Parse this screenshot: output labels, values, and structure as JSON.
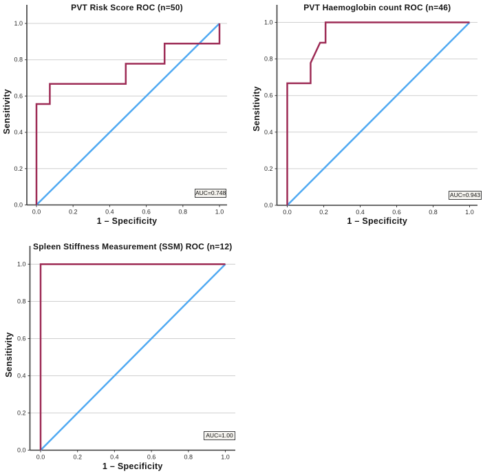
{
  "page": {
    "background": "#ffffff"
  },
  "colors": {
    "roc_curve": "#9d2b55",
    "reference_line": "#4fa9f2",
    "gridline": "#cfcfcf",
    "axis": "#3b3b3b",
    "text": "#151515",
    "auc_box_bg": "#f4f2ed"
  },
  "chart_data": [
    {
      "type": "line",
      "title": "PVT Risk Score ROC (n=50)",
      "xlabel": "1 – Specificity",
      "ylabel": "Sensitivity",
      "annotation": "AUC=0.748",
      "auc": 0.748,
      "xlim": [
        0,
        1
      ],
      "ylim": [
        0,
        1
      ],
      "x_ticks": [
        0.0,
        0.2,
        0.4,
        0.6,
        0.8,
        1.0
      ],
      "y_ticks": [
        0.0,
        0.2,
        0.4,
        0.6,
        0.8,
        1.0
      ],
      "grid": "horizontal-only",
      "legend": "none",
      "series": [
        {
          "id": "roc-curve",
          "color": "#9d2b55",
          "points": [
            [
              0,
              0
            ],
            [
              0,
              0.556
            ],
            [
              0.073,
              0.556
            ],
            [
              0.073,
              0.667
            ],
            [
              0.488,
              0.667
            ],
            [
              0.488,
              0.778
            ],
            [
              0.7,
              0.778
            ],
            [
              0.7,
              0.889
            ],
            [
              1,
              0.889
            ],
            [
              1,
              1
            ]
          ]
        },
        {
          "id": "reference-line",
          "color": "#4fa9f2",
          "points": [
            [
              0,
              0
            ],
            [
              1,
              1
            ]
          ]
        }
      ]
    },
    {
      "type": "line",
      "title": "PVT Haemoglobin count ROC (n=46)",
      "xlabel": "1 – Specificity",
      "ylabel": "Sensitivity",
      "annotation": "AUC=0.943",
      "auc": 0.943,
      "xlim": [
        0,
        1
      ],
      "ylim": [
        0,
        1
      ],
      "x_ticks": [
        0.0,
        0.2,
        0.4,
        0.6,
        0.8,
        1.0
      ],
      "y_ticks": [
        0.0,
        0.2,
        0.4,
        0.6,
        0.8,
        1.0
      ],
      "grid": "horizontal-only",
      "legend": "none",
      "series": [
        {
          "id": "roc-curve",
          "color": "#9d2b55",
          "points": [
            [
              0,
              0
            ],
            [
              0,
              0.667
            ],
            [
              0.128,
              0.667
            ],
            [
              0.128,
              0.778
            ],
            [
              0.18,
              0.889
            ],
            [
              0.21,
              0.889
            ],
            [
              0.21,
              1
            ],
            [
              1,
              1
            ]
          ]
        },
        {
          "id": "reference-line",
          "color": "#4fa9f2",
          "points": [
            [
              0,
              0
            ],
            [
              1,
              1
            ]
          ]
        }
      ]
    },
    {
      "type": "line",
      "title": "Spleen Stiffness Measurement (SSM) ROC (n=12)",
      "xlabel": "1 – Specificity",
      "ylabel": "Sensitivity",
      "annotation": "AUC=1.00",
      "auc": 1.0,
      "xlim": [
        0,
        1
      ],
      "ylim": [
        0,
        1
      ],
      "x_ticks": [
        0.0,
        0.2,
        0.4,
        0.6,
        0.8,
        1.0
      ],
      "y_ticks": [
        0.0,
        0.2,
        0.4,
        0.6,
        0.8,
        1.0
      ],
      "grid": "horizontal-only",
      "legend": "none",
      "series": [
        {
          "id": "roc-curve",
          "color": "#9d2b55",
          "points": [
            [
              0,
              0
            ],
            [
              0,
              1
            ],
            [
              1,
              1
            ]
          ]
        },
        {
          "id": "reference-line",
          "color": "#4fa9f2",
          "points": [
            [
              0,
              0
            ],
            [
              1,
              1
            ]
          ]
        }
      ]
    }
  ]
}
